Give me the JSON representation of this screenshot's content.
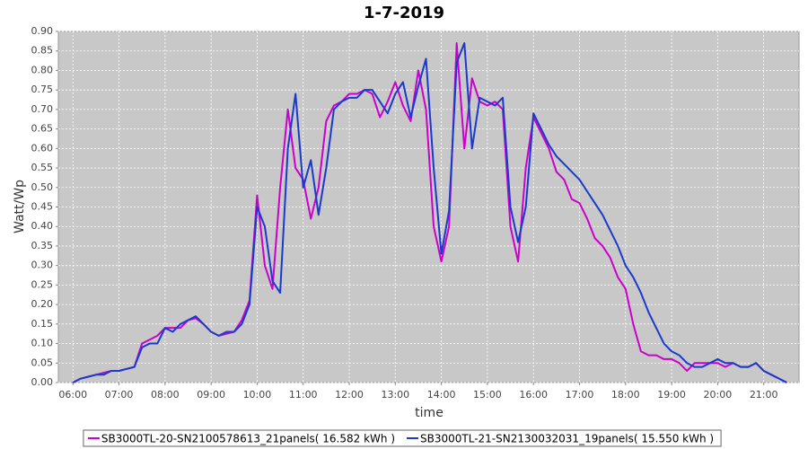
{
  "chart_data": {
    "type": "line",
    "title": "1-7-2019",
    "x_label": "time",
    "y_label": "Watt/Wp",
    "x": [
      "06:00",
      "06:10",
      "06:20",
      "06:30",
      "06:40",
      "06:50",
      "07:00",
      "07:10",
      "07:20",
      "07:30",
      "07:40",
      "07:50",
      "08:00",
      "08:10",
      "08:20",
      "08:30",
      "08:40",
      "08:50",
      "09:00",
      "09:10",
      "09:20",
      "09:30",
      "09:40",
      "09:50",
      "10:00",
      "10:10",
      "10:20",
      "10:30",
      "10:40",
      "10:50",
      "11:00",
      "11:10",
      "11:20",
      "11:30",
      "11:40",
      "11:50",
      "12:00",
      "12:10",
      "12:20",
      "12:30",
      "12:40",
      "12:50",
      "13:00",
      "13:10",
      "13:20",
      "13:30",
      "13:40",
      "13:50",
      "14:00",
      "14:10",
      "14:20",
      "14:30",
      "14:40",
      "14:50",
      "15:00",
      "15:10",
      "15:20",
      "15:30",
      "15:40",
      "15:50",
      "16:00",
      "16:10",
      "16:20",
      "16:30",
      "16:40",
      "16:50",
      "17:00",
      "17:10",
      "17:20",
      "17:30",
      "17:40",
      "17:50",
      "18:00",
      "18:10",
      "18:20",
      "18:30",
      "18:40",
      "18:50",
      "19:00",
      "19:10",
      "19:20",
      "19:30",
      "19:40",
      "19:50",
      "20:00",
      "20:10",
      "20:20",
      "20:30",
      "20:40",
      "20:50",
      "21:00",
      "21:10",
      "21:20",
      "21:30"
    ],
    "series": [
      {
        "name": "SB3000TL-20-SN2100578613_21panels( 16.582 kWh )",
        "color": "#cc00cc",
        "values": [
          0,
          0.01,
          0.015,
          0.02,
          0.025,
          0.03,
          0.03,
          0.035,
          0.04,
          0.1,
          0.11,
          0.12,
          0.14,
          0.14,
          0.14,
          0.16,
          0.165,
          0.15,
          0.13,
          0.12,
          0.125,
          0.13,
          0.16,
          0.21,
          0.48,
          0.3,
          0.24,
          0.5,
          0.7,
          0.55,
          0.52,
          0.42,
          0.5,
          0.67,
          0.71,
          0.72,
          0.74,
          0.74,
          0.75,
          0.74,
          0.68,
          0.72,
          0.77,
          0.71,
          0.67,
          0.8,
          0.7,
          0.4,
          0.31,
          0.4,
          0.87,
          0.6,
          0.78,
          0.72,
          0.71,
          0.72,
          0.7,
          0.4,
          0.31,
          0.55,
          0.68,
          0.64,
          0.6,
          0.54,
          0.52,
          0.47,
          0.46,
          0.42,
          0.37,
          0.35,
          0.32,
          0.27,
          0.24,
          0.15,
          0.08,
          0.07,
          0.07,
          0.06,
          0.06,
          0.05,
          0.03,
          0.05,
          0.05,
          0.05,
          0.05,
          0.04,
          0.05,
          0.04,
          0.04,
          0.05,
          0.03,
          0.02,
          0.01,
          0
        ]
      },
      {
        "name": "SB3000TL-21-SN2130032031_19panels( 15.550 kWh )",
        "color": "#1a3acc",
        "values": [
          0,
          0.01,
          0.015,
          0.02,
          0.02,
          0.03,
          0.03,
          0.035,
          0.04,
          0.09,
          0.1,
          0.1,
          0.14,
          0.13,
          0.15,
          0.16,
          0.17,
          0.15,
          0.13,
          0.12,
          0.13,
          0.13,
          0.15,
          0.2,
          0.45,
          0.4,
          0.26,
          0.23,
          0.6,
          0.74,
          0.5,
          0.57,
          0.43,
          0.55,
          0.7,
          0.72,
          0.73,
          0.73,
          0.75,
          0.75,
          0.72,
          0.69,
          0.74,
          0.77,
          0.68,
          0.76,
          0.83,
          0.55,
          0.33,
          0.44,
          0.82,
          0.87,
          0.6,
          0.73,
          0.72,
          0.71,
          0.73,
          0.45,
          0.36,
          0.45,
          0.69,
          0.65,
          0.61,
          0.58,
          0.56,
          0.54,
          0.52,
          0.49,
          0.46,
          0.43,
          0.39,
          0.35,
          0.3,
          0.27,
          0.23,
          0.18,
          0.14,
          0.1,
          0.08,
          0.07,
          0.05,
          0.04,
          0.04,
          0.05,
          0.06,
          0.05,
          0.05,
          0.04,
          0.04,
          0.05,
          0.03,
          0.02,
          0.01,
          0
        ]
      }
    ],
    "xlim": [
      "05:41",
      "21:46"
    ],
    "xticks": [
      "06:00",
      "07:00",
      "08:00",
      "09:00",
      "10:00",
      "11:00",
      "12:00",
      "13:00",
      "14:00",
      "15:00",
      "16:00",
      "17:00",
      "18:00",
      "19:00",
      "20:00",
      "21:00"
    ],
    "ylim": [
      0,
      0.9
    ],
    "yticks": [
      {
        "value": 0,
        "label": "0.00"
      },
      {
        "value": 0.05,
        "label": "0.05"
      },
      {
        "value": 0.1,
        "label": "0.10"
      },
      {
        "value": 0.15,
        "label": "0.15"
      },
      {
        "value": 0.2,
        "label": "0.20"
      },
      {
        "value": 0.25,
        "label": "0.25"
      },
      {
        "value": 0.3,
        "label": "0.30"
      },
      {
        "value": 0.35,
        "label": "0.35"
      },
      {
        "value": 0.4,
        "label": "0.40"
      },
      {
        "value": 0.45,
        "label": "0.45"
      },
      {
        "value": 0.5,
        "label": "0.50"
      },
      {
        "value": 0.55,
        "label": "0.55"
      },
      {
        "value": 0.6,
        "label": "0.60"
      },
      {
        "value": 0.65,
        "label": "0.65"
      },
      {
        "value": 0.7,
        "label": "0.70"
      },
      {
        "value": 0.75,
        "label": "0.75"
      },
      {
        "value": 0.8,
        "label": "0.80"
      },
      {
        "value": 0.85,
        "label": "0.85"
      },
      {
        "value": 0.9,
        "label": "0.90"
      }
    ],
    "grid": true,
    "legend": "bottom"
  }
}
